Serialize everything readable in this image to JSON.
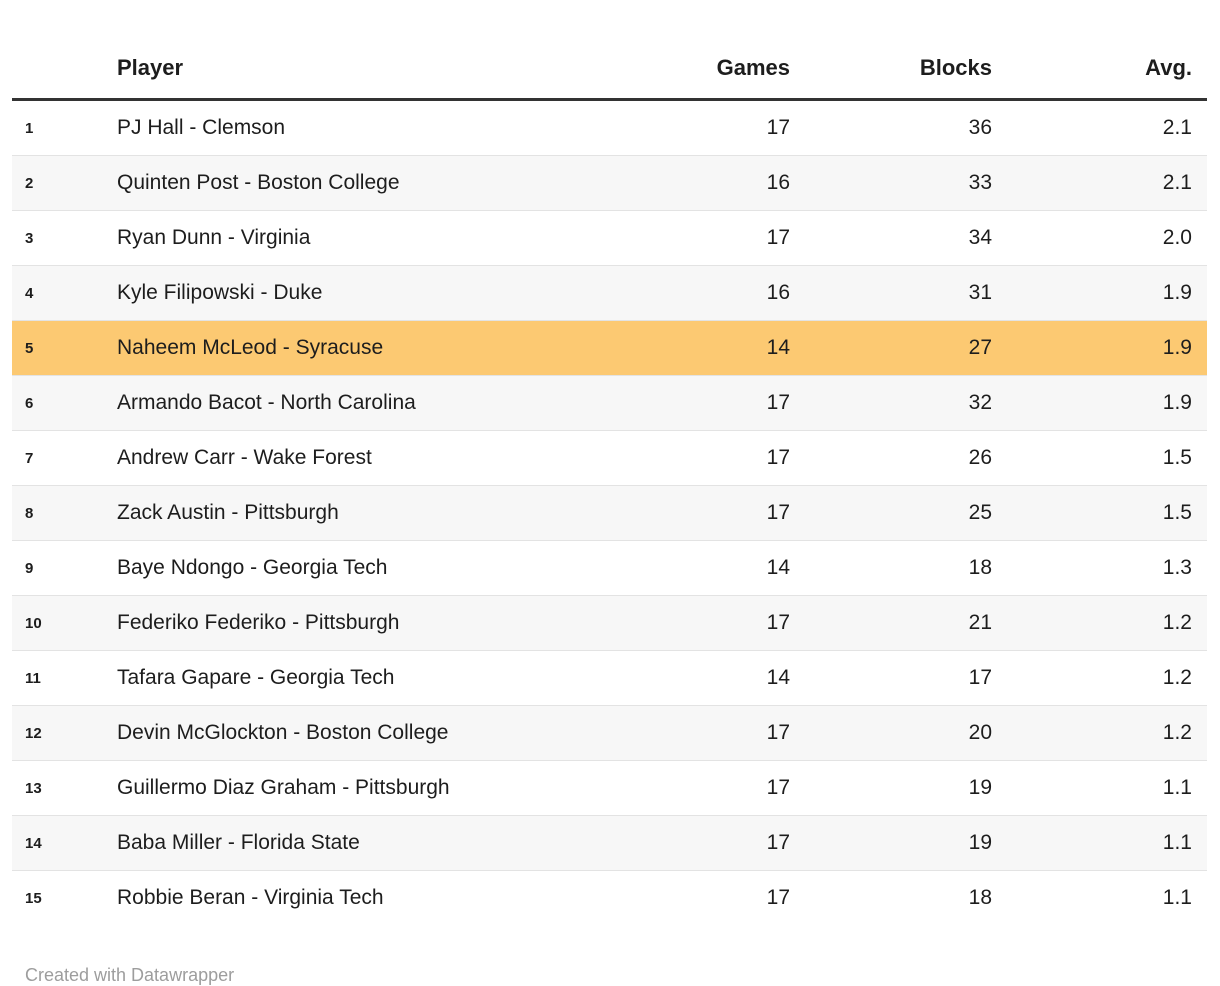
{
  "chart_data": {
    "type": "table",
    "columns": [
      "",
      "Player",
      "Games",
      "Blocks",
      "Avg."
    ],
    "rows": [
      [
        1,
        "PJ Hall - Clemson",
        17,
        36,
        "2.1"
      ],
      [
        2,
        "Quinten Post - Boston College",
        16,
        33,
        "2.1"
      ],
      [
        3,
        "Ryan Dunn - Virginia",
        17,
        34,
        "2.0"
      ],
      [
        4,
        "Kyle Filipowski - Duke",
        16,
        31,
        "1.9"
      ],
      [
        5,
        "Naheem McLeod - Syracuse",
        14,
        27,
        "1.9"
      ],
      [
        6,
        "Armando Bacot - North Carolina",
        17,
        32,
        "1.9"
      ],
      [
        7,
        "Andrew Carr - Wake Forest",
        17,
        26,
        "1.5"
      ],
      [
        8,
        "Zack Austin - Pittsburgh",
        17,
        25,
        "1.5"
      ],
      [
        9,
        "Baye Ndongo - Georgia Tech",
        14,
        18,
        "1.3"
      ],
      [
        10,
        "Federiko Federiko - Pittsburgh",
        17,
        21,
        "1.2"
      ],
      [
        11,
        "Tafara Gapare - Georgia Tech",
        14,
        17,
        "1.2"
      ],
      [
        12,
        "Devin McGlockton - Boston College",
        17,
        20,
        "1.2"
      ],
      [
        13,
        "Guillermo Diaz Graham - Pittsburgh",
        17,
        19,
        "1.1"
      ],
      [
        14,
        "Baba Miller - Florida State",
        17,
        19,
        "1.1"
      ],
      [
        15,
        "Robbie Beran - Virginia Tech",
        17,
        18,
        "1.1"
      ]
    ],
    "highlighted_rank": 5,
    "highlight_color": "#fcc972",
    "alt_row_color": "#f7f7f7",
    "header_rule_color": "#333333",
    "legend_position": "none",
    "grid": "row-separators"
  },
  "footer": {
    "credit": "Created with Datawrapper"
  }
}
